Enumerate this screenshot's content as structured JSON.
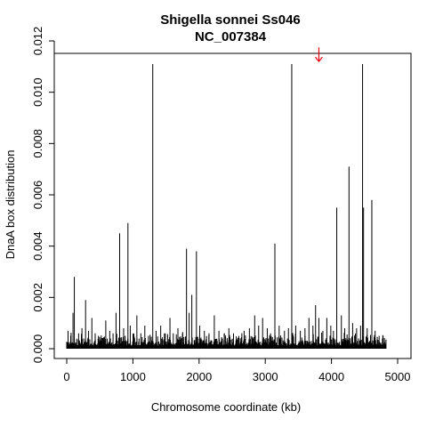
{
  "chart_data": {
    "type": "bar",
    "title": "Shigella sonnei Ss046",
    "subtitle": "NC_007384",
    "xlabel": "Chromosome coordinate (kb)",
    "ylabel": "DnaA box distribution",
    "xlim": [
      0,
      4825
    ],
    "ylim": [
      0,
      0.012
    ],
    "x_ticks": [
      0,
      1000,
      2000,
      3000,
      4000,
      5000
    ],
    "x_tick_labels": [
      "0",
      "1000",
      "2000",
      "3000",
      "4000",
      "5000"
    ],
    "y_ticks": [
      0,
      0.002,
      0.004,
      0.006,
      0.008,
      0.01,
      0.012
    ],
    "y_tick_labels": [
      "0.000",
      "0.002",
      "0.004",
      "0.006",
      "0.008",
      "0.010",
      "0.012"
    ],
    "grid": false,
    "bar_color": "#000000",
    "peaks": [
      {
        "x": 20,
        "y": 0.0007
      },
      {
        "x": 60,
        "y": 0.0005
      },
      {
        "x": 95,
        "y": 0.0014
      },
      {
        "x": 115,
        "y": 0.0028
      },
      {
        "x": 180,
        "y": 0.0006
      },
      {
        "x": 230,
        "y": 0.0008
      },
      {
        "x": 285,
        "y": 0.0019
      },
      {
        "x": 330,
        "y": 0.0007
      },
      {
        "x": 380,
        "y": 0.0012
      },
      {
        "x": 430,
        "y": 0.0006
      },
      {
        "x": 480,
        "y": 0.0005
      },
      {
        "x": 590,
        "y": 0.0011
      },
      {
        "x": 650,
        "y": 0.0007
      },
      {
        "x": 700,
        "y": 0.0006
      },
      {
        "x": 745,
        "y": 0.0014
      },
      {
        "x": 800,
        "y": 0.0045
      },
      {
        "x": 860,
        "y": 0.0008
      },
      {
        "x": 925,
        "y": 0.0049
      },
      {
        "x": 960,
        "y": 0.0009
      },
      {
        "x": 1010,
        "y": 0.0006
      },
      {
        "x": 1060,
        "y": 0.0013
      },
      {
        "x": 1120,
        "y": 0.0006
      },
      {
        "x": 1180,
        "y": 0.0009
      },
      {
        "x": 1235,
        "y": 0.0005
      },
      {
        "x": 1300,
        "y": 0.0111
      },
      {
        "x": 1350,
        "y": 0.0007
      },
      {
        "x": 1420,
        "y": 0.0009
      },
      {
        "x": 1490,
        "y": 0.0006
      },
      {
        "x": 1560,
        "y": 0.0012
      },
      {
        "x": 1610,
        "y": 0.0006
      },
      {
        "x": 1680,
        "y": 0.0008
      },
      {
        "x": 1750,
        "y": 0.0006
      },
      {
        "x": 1810,
        "y": 0.0039
      },
      {
        "x": 1850,
        "y": 0.0014
      },
      {
        "x": 1890,
        "y": 0.0021
      },
      {
        "x": 1960,
        "y": 0.0038
      },
      {
        "x": 2010,
        "y": 0.0009
      },
      {
        "x": 2080,
        "y": 0.0007
      },
      {
        "x": 2150,
        "y": 0.0006
      },
      {
        "x": 2230,
        "y": 0.0013
      },
      {
        "x": 2300,
        "y": 0.0007
      },
      {
        "x": 2380,
        "y": 0.0006
      },
      {
        "x": 2450,
        "y": 0.0008
      },
      {
        "x": 2520,
        "y": 0.0006
      },
      {
        "x": 2600,
        "y": 0.0005
      },
      {
        "x": 2680,
        "y": 0.0007
      },
      {
        "x": 2760,
        "y": 0.0008
      },
      {
        "x": 2840,
        "y": 0.0013
      },
      {
        "x": 2900,
        "y": 0.0009
      },
      {
        "x": 2960,
        "y": 0.0012
      },
      {
        "x": 3030,
        "y": 0.0008
      },
      {
        "x": 3080,
        "y": 0.0006
      },
      {
        "x": 3145,
        "y": 0.0041
      },
      {
        "x": 3210,
        "y": 0.0009
      },
      {
        "x": 3290,
        "y": 0.0007
      },
      {
        "x": 3350,
        "y": 0.0008
      },
      {
        "x": 3400,
        "y": 0.0111
      },
      {
        "x": 3460,
        "y": 0.0009
      },
      {
        "x": 3530,
        "y": 0.0007
      },
      {
        "x": 3600,
        "y": 0.0008
      },
      {
        "x": 3660,
        "y": 0.0012
      },
      {
        "x": 3720,
        "y": 0.0009
      },
      {
        "x": 3760,
        "y": 0.0017
      },
      {
        "x": 3810,
        "y": 0.0012
      },
      {
        "x": 3870,
        "y": 0.0007
      },
      {
        "x": 3930,
        "y": 0.0012
      },
      {
        "x": 3990,
        "y": 0.0009
      },
      {
        "x": 4030,
        "y": 0.0007
      },
      {
        "x": 4080,
        "y": 0.0055
      },
      {
        "x": 4150,
        "y": 0.0013
      },
      {
        "x": 4200,
        "y": 0.0008
      },
      {
        "x": 4265,
        "y": 0.0071
      },
      {
        "x": 4320,
        "y": 0.001
      },
      {
        "x": 4380,
        "y": 0.0008
      },
      {
        "x": 4440,
        "y": 0.0009
      },
      {
        "x": 4470,
        "y": 0.0111
      },
      {
        "x": 4485,
        "y": 0.0055
      },
      {
        "x": 4540,
        "y": 0.0008
      },
      {
        "x": 4610,
        "y": 0.0058
      },
      {
        "x": 4660,
        "y": 0.0007
      },
      {
        "x": 4720,
        "y": 0.0005
      },
      {
        "x": 4780,
        "y": 0.0005
      }
    ],
    "annotations": [
      {
        "type": "arrow",
        "x": 3810,
        "y_top": 0.01175,
        "y_bottom": 0.0112,
        "color": "#e8000b"
      }
    ]
  }
}
